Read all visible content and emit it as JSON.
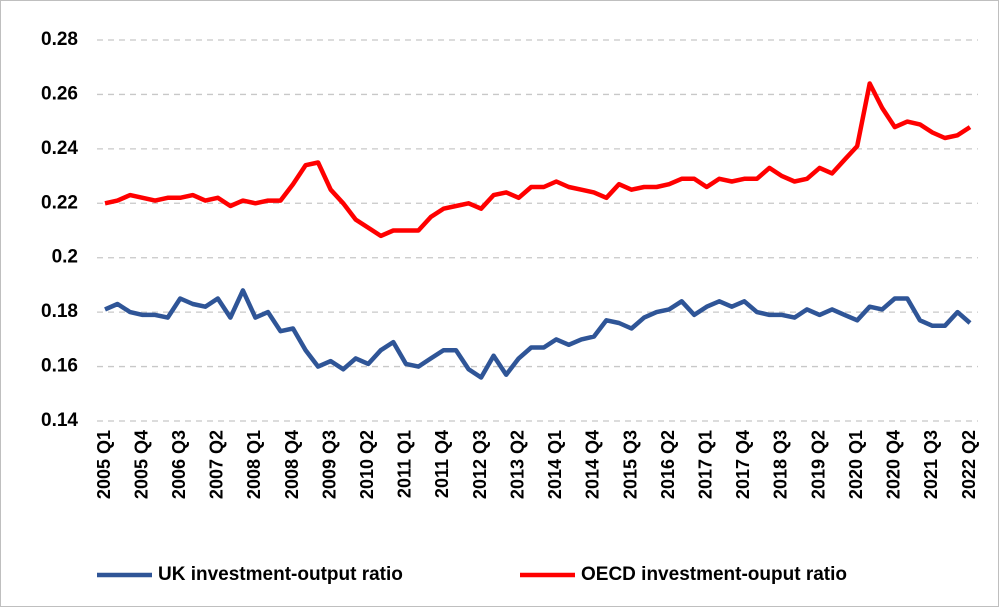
{
  "chart_data": {
    "type": "line",
    "categories": [
      "2005 Q1",
      null,
      null,
      "2005 Q4",
      null,
      null,
      "2006 Q3",
      null,
      null,
      "2007 Q2",
      null,
      null,
      "2008 Q1",
      null,
      null,
      "2008 Q4",
      null,
      null,
      "2009 Q3",
      null,
      null,
      "2010 Q2",
      null,
      null,
      "2011 Q1",
      null,
      null,
      "2011 Q4",
      null,
      null,
      "2012 Q3",
      null,
      null,
      "2013 Q2",
      null,
      null,
      "2014 Q1",
      null,
      null,
      "2014 Q4",
      null,
      null,
      "2015 Q3",
      null,
      null,
      "2016 Q2",
      null,
      null,
      "2017 Q1",
      null,
      null,
      "2017 Q4",
      null,
      null,
      "2018 Q3",
      null,
      null,
      "2019 Q2",
      null,
      null,
      "2020 Q1",
      null,
      null,
      "2020 Q4",
      null,
      null,
      "2021 Q3",
      null,
      null,
      "2022 Q2"
    ],
    "series": [
      {
        "name": "UK investment-output ratio",
        "color": "#2f5597",
        "values": [
          0.181,
          0.183,
          0.18,
          0.179,
          0.179,
          0.178,
          0.185,
          0.183,
          0.182,
          0.185,
          0.178,
          0.188,
          0.178,
          0.18,
          0.173,
          0.174,
          0.166,
          0.16,
          0.162,
          0.159,
          0.163,
          0.161,
          0.166,
          0.169,
          0.161,
          0.16,
          0.163,
          0.166,
          0.166,
          0.159,
          0.156,
          0.164,
          0.157,
          0.163,
          0.167,
          0.167,
          0.17,
          0.168,
          0.17,
          0.171,
          0.177,
          0.176,
          0.174,
          0.178,
          0.18,
          0.181,
          0.184,
          0.179,
          0.182,
          0.184,
          0.182,
          0.184,
          0.18,
          0.179,
          0.179,
          0.178,
          0.181,
          0.179,
          0.181,
          0.179,
          0.177,
          0.182,
          0.181,
          0.185,
          0.185,
          0.177,
          0.175,
          0.175,
          0.18,
          0.176
        ]
      },
      {
        "name": "OECD investment-ouput ratio",
        "color": "#ff0000",
        "values": [
          0.22,
          0.221,
          0.223,
          0.222,
          0.221,
          0.222,
          0.222,
          0.223,
          0.221,
          0.222,
          0.219,
          0.221,
          0.22,
          0.221,
          0.221,
          0.227,
          0.234,
          0.235,
          0.225,
          0.22,
          0.214,
          0.211,
          0.208,
          0.21,
          0.21,
          0.21,
          0.215,
          0.218,
          0.219,
          0.22,
          0.218,
          0.223,
          0.224,
          0.222,
          0.226,
          0.226,
          0.228,
          0.226,
          0.225,
          0.224,
          0.222,
          0.227,
          0.225,
          0.226,
          0.226,
          0.227,
          0.229,
          0.229,
          0.226,
          0.229,
          0.228,
          0.229,
          0.229,
          0.233,
          0.23,
          0.228,
          0.229,
          0.233,
          0.231,
          0.236,
          0.241,
          0.264,
          0.255,
          0.248,
          0.25,
          0.249,
          0.246,
          0.244,
          0.245,
          0.248
        ]
      }
    ],
    "ylim": [
      0.14,
      0.28
    ],
    "yticks": [
      0.14,
      0.16,
      0.18,
      0.2,
      0.22,
      0.24,
      0.26,
      0.28
    ],
    "grid": true,
    "legend": "bottom"
  }
}
